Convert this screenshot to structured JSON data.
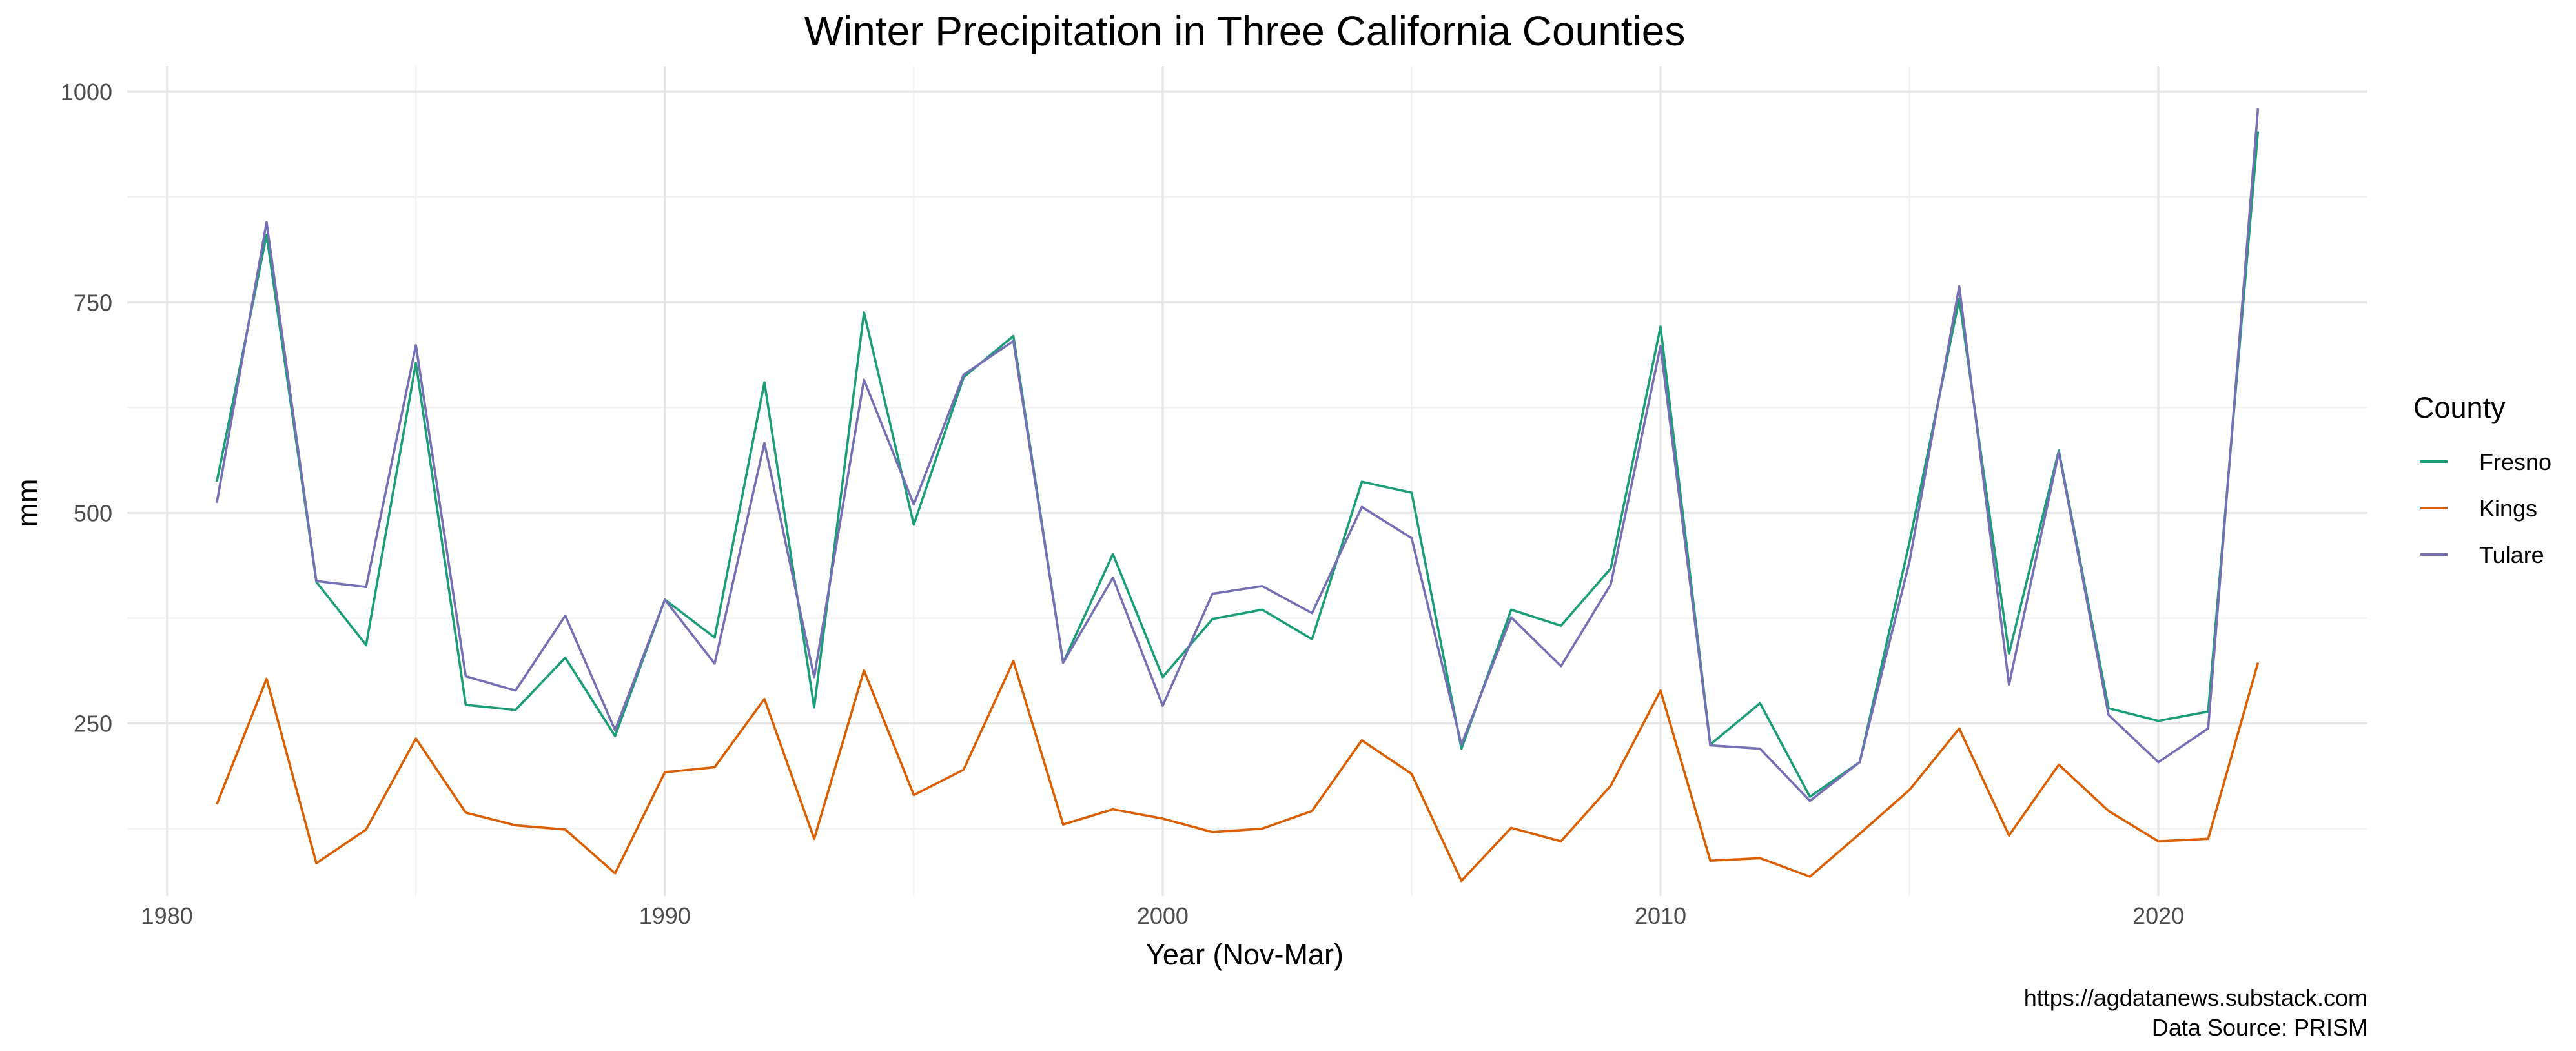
{
  "chart_data": {
    "type": "line",
    "title": "Winter Precipitation in Three California Counties",
    "xlabel": "Year (Nov-Mar)",
    "ylabel": "mm",
    "xlim": [
      1979.2,
      2024.2
    ],
    "ylim": [
      45,
      1030
    ],
    "x_ticks": [
      1980,
      1990,
      2000,
      2010,
      2020
    ],
    "x_tick_labels": [
      "1980",
      "1990",
      "2000",
      "2010",
      "2020"
    ],
    "x_minor_ticks": [
      1985,
      1995,
      2005,
      2015
    ],
    "y_ticks": [
      250,
      500,
      750,
      1000
    ],
    "y_tick_labels": [
      "250",
      "500",
      "750",
      "1000"
    ],
    "y_minor_ticks": [
      125,
      375,
      625,
      875
    ],
    "grid": true,
    "legend_title": "County",
    "legend_position": "right",
    "x": [
      1981,
      1982,
      1983,
      1984,
      1985,
      1986,
      1987,
      1988,
      1989,
      1990,
      1991,
      1992,
      1993,
      1994,
      1995,
      1996,
      1997,
      1998,
      1999,
      2000,
      2001,
      2002,
      2003,
      2004,
      2005,
      2006,
      2007,
      2008,
      2009,
      2010,
      2011,
      2012,
      2013,
      2014,
      2015,
      2016,
      2017,
      2018,
      2019,
      2020,
      2021,
      2022
    ],
    "series": [
      {
        "name": "Fresno",
        "color": "#1b9e77",
        "values": [
          537,
          830,
          418,
          343,
          678,
          272,
          266,
          328,
          235,
          397,
          352,
          655,
          269,
          738,
          486,
          661,
          710,
          322,
          451,
          305,
          374,
          385,
          350,
          537,
          524,
          220,
          385,
          366,
          434,
          721,
          225,
          274,
          163,
          204,
          465,
          754,
          333,
          574,
          268,
          253,
          264,
          953
        ]
      },
      {
        "name": "Kings",
        "color": "#d95f02",
        "values": [
          154,
          303,
          84,
          124,
          232,
          144,
          129,
          124,
          72,
          192,
          198,
          279,
          113,
          313,
          165,
          195,
          324,
          130,
          148,
          137,
          121,
          125,
          146,
          230,
          190,
          63,
          126,
          110,
          176,
          289,
          87,
          90,
          68,
          119,
          171,
          244,
          117,
          201,
          146,
          110,
          113,
          322
        ]
      },
      {
        "name": "Tulare",
        "color": "#7570b3",
        "values": [
          512,
          845,
          419,
          412,
          699,
          306,
          289,
          378,
          242,
          397,
          321,
          583,
          305,
          658,
          510,
          664,
          704,
          322,
          423,
          271,
          404,
          413,
          381,
          507,
          470,
          225,
          376,
          318,
          415,
          698,
          224,
          220,
          158,
          204,
          442,
          769,
          296,
          572,
          260,
          204,
          244,
          980
        ]
      }
    ]
  },
  "caption": {
    "line1": "https://agdatanews.substack.com",
    "line2": "Data Source: PRISM"
  }
}
